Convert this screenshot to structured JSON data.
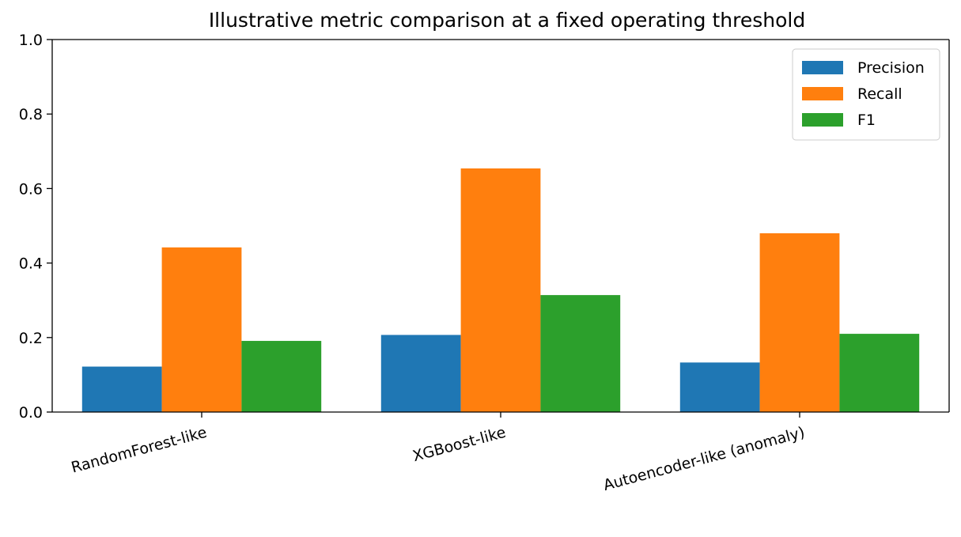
{
  "chart_data": {
    "type": "bar",
    "title": "Illustrative metric comparison at a fixed operating threshold",
    "xlabel": "",
    "ylabel": "",
    "categories": [
      "RandomForest-like",
      "XGBoost-like",
      "Autoencoder-like (anomaly)"
    ],
    "series": [
      {
        "name": "Precision",
        "color": "#1f77b4",
        "values": [
          0.122,
          0.207,
          0.133
        ]
      },
      {
        "name": "Recall",
        "color": "#ff7f0e",
        "values": [
          0.442,
          0.654,
          0.48
        ]
      },
      {
        "name": "F1",
        "color": "#2ca02c",
        "values": [
          0.191,
          0.314,
          0.21
        ]
      }
    ],
    "ylim": [
      0,
      1.0
    ],
    "yticks": [
      "0.0",
      "0.2",
      "0.4",
      "0.6",
      "0.8",
      "1.0"
    ],
    "grid": false,
    "legend_position": "top-right"
  }
}
